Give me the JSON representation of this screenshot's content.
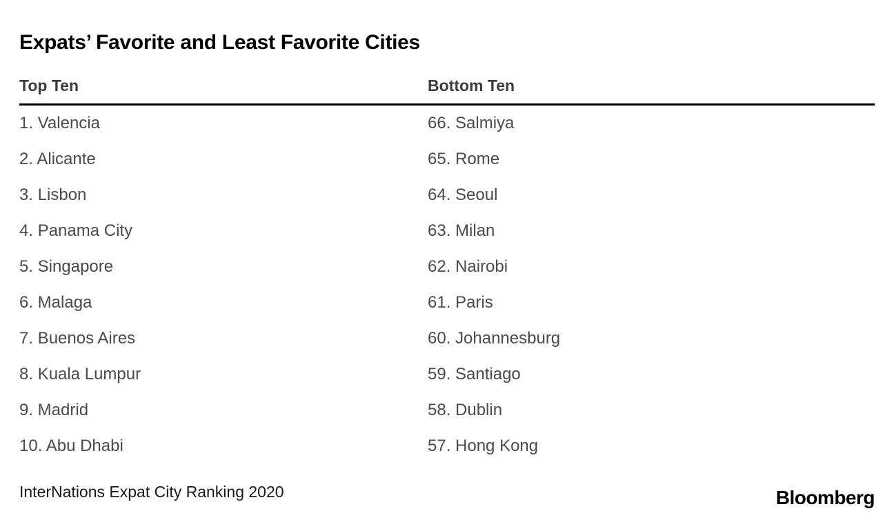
{
  "title": "Expats’ Favorite and Least Favorite Cities",
  "columns": [
    {
      "header": "Top Ten",
      "items": [
        "1. Valencia",
        "2. Alicante",
        "3. Lisbon",
        "4. Panama City",
        "5. Singapore",
        "6. Malaga",
        "7. Buenos Aires",
        "8. Kuala Lumpur",
        "9. Madrid",
        "10. Abu Dhabi"
      ]
    },
    {
      "header": "Bottom Ten",
      "items": [
        "66. Salmiya",
        "65. Rome",
        "64. Seoul",
        "63. Milan",
        "62. Nairobi",
        "61. Paris",
        "60. Johannesburg",
        "59. Santiago",
        "58. Dublin",
        "57. Hong Kong"
      ]
    }
  ],
  "source": "InterNations Expat City Ranking 2020",
  "logo_text": "Bloomberg",
  "colors": {
    "title": "#000000",
    "header": "#3d3d3d",
    "item": "#4a4a4a",
    "rule": "#000000",
    "background": "#ffffff"
  },
  "chart_data": {
    "type": "table",
    "title": "Expats’ Favorite and Least Favorite Cities",
    "columns": [
      "Top Ten",
      "Bottom Ten"
    ],
    "top_ten": [
      {
        "rank": 1,
        "city": "Valencia"
      },
      {
        "rank": 2,
        "city": "Alicante"
      },
      {
        "rank": 3,
        "city": "Lisbon"
      },
      {
        "rank": 4,
        "city": "Panama City"
      },
      {
        "rank": 5,
        "city": "Singapore"
      },
      {
        "rank": 6,
        "city": "Malaga"
      },
      {
        "rank": 7,
        "city": "Buenos Aires"
      },
      {
        "rank": 8,
        "city": "Kuala Lumpur"
      },
      {
        "rank": 9,
        "city": "Madrid"
      },
      {
        "rank": 10,
        "city": "Abu Dhabi"
      }
    ],
    "bottom_ten": [
      {
        "rank": 66,
        "city": "Salmiya"
      },
      {
        "rank": 65,
        "city": "Rome"
      },
      {
        "rank": 64,
        "city": "Seoul"
      },
      {
        "rank": 63,
        "city": "Milan"
      },
      {
        "rank": 62,
        "city": "Nairobi"
      },
      {
        "rank": 61,
        "city": "Paris"
      },
      {
        "rank": 60,
        "city": "Johannesburg"
      },
      {
        "rank": 59,
        "city": "Santiago"
      },
      {
        "rank": 58,
        "city": "Dublin"
      },
      {
        "rank": 57,
        "city": "Hong Kong"
      }
    ],
    "source": "InterNations Expat City Ranking 2020",
    "legend_position": "none",
    "grid": false
  }
}
